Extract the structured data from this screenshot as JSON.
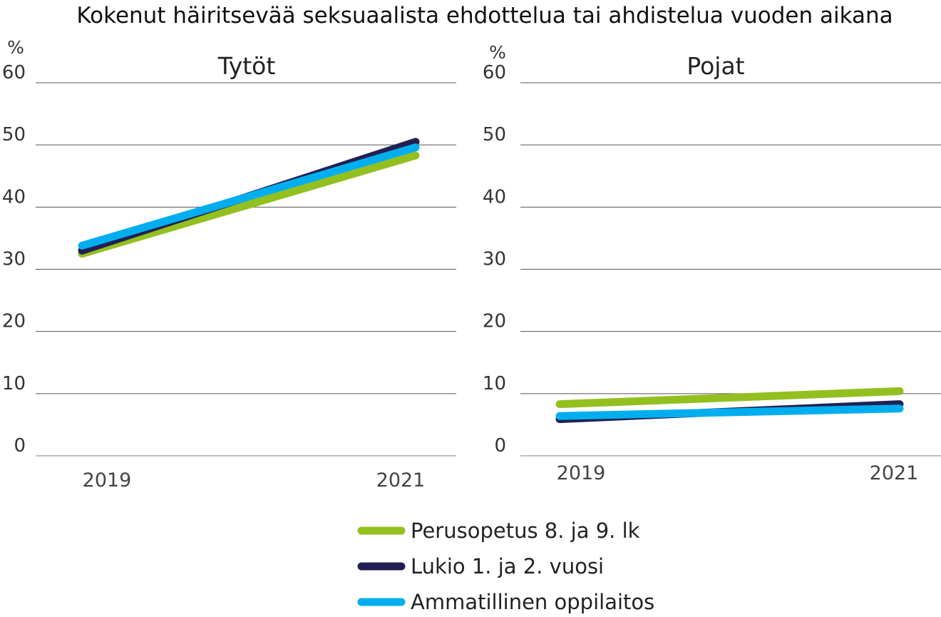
{
  "chart_data": [
    {
      "type": "line",
      "title": "Kokenut häiritsevää seksuaalista ehdottelua tai ahdistelua vuoden aikana",
      "subtitle": "Tytöt",
      "ylabel": "%",
      "xlabel": "",
      "x": [
        "2019",
        "2021"
      ],
      "ylim": [
        0,
        60
      ],
      "yticks": [
        "0",
        "10",
        "20",
        "30",
        "40",
        "50",
        "60"
      ],
      "grid": true,
      "legend": "bottom",
      "series": [
        {
          "name": "Perusopetus 8. ja 9. lk",
          "values": [
            32.5,
            48.3
          ],
          "color": "#93c01f"
        },
        {
          "name": "Lukio 1. ja 2. vuosi",
          "values": [
            33.0,
            50.5
          ],
          "color": "#222052"
        },
        {
          "name": "Ammatillinen oppilaitos",
          "values": [
            33.8,
            49.6
          ],
          "color": "#00aeef"
        }
      ]
    },
    {
      "type": "line",
      "title": "",
      "subtitle": "Pojat",
      "ylabel": "%",
      "xlabel": "",
      "x": [
        "2019",
        "2021"
      ],
      "ylim": [
        0,
        60
      ],
      "yticks": [
        "0",
        "10",
        "20",
        "30",
        "40",
        "50",
        "60"
      ],
      "grid": true,
      "legend": "bottom",
      "series": [
        {
          "name": "Perusopetus 8. ja 9. lk",
          "values": [
            8.3,
            10.4
          ],
          "color": "#93c01f"
        },
        {
          "name": "Lukio 1. ja 2. vuosi",
          "values": [
            5.9,
            8.3
          ],
          "color": "#222052"
        },
        {
          "name": "Ammatillinen oppilaitos",
          "values": [
            6.4,
            7.6
          ],
          "color": "#00aeef"
        }
      ]
    }
  ]
}
